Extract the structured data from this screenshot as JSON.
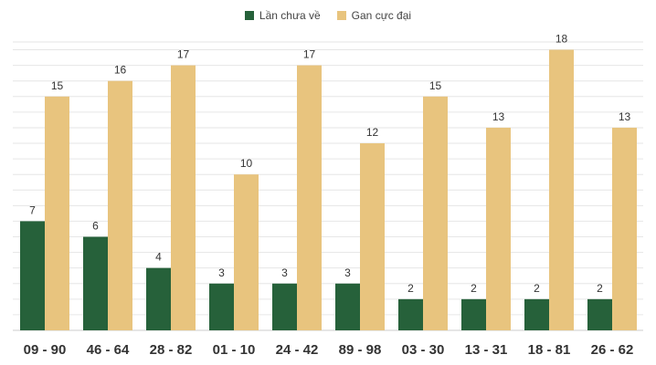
{
  "chart_data": {
    "type": "bar",
    "categories": [
      "09 - 90",
      "46 - 64",
      "28 - 82",
      "01 - 10",
      "24 - 42",
      "89 - 98",
      "03 - 30",
      "13 - 31",
      "18 - 81",
      "26 - 62"
    ],
    "series": [
      {
        "name": "Lần chưa về",
        "color": "#26613a",
        "values": [
          7,
          6,
          4,
          3,
          3,
          3,
          2,
          2,
          2,
          2
        ]
      },
      {
        "name": "Gan cực đại",
        "color": "#e8c47e",
        "values": [
          15,
          16,
          17,
          10,
          17,
          12,
          15,
          13,
          18,
          13
        ]
      }
    ],
    "ylim": [
      0,
      18.5
    ],
    "grid": true,
    "legend_position": "top-center",
    "data_labels": true
  }
}
